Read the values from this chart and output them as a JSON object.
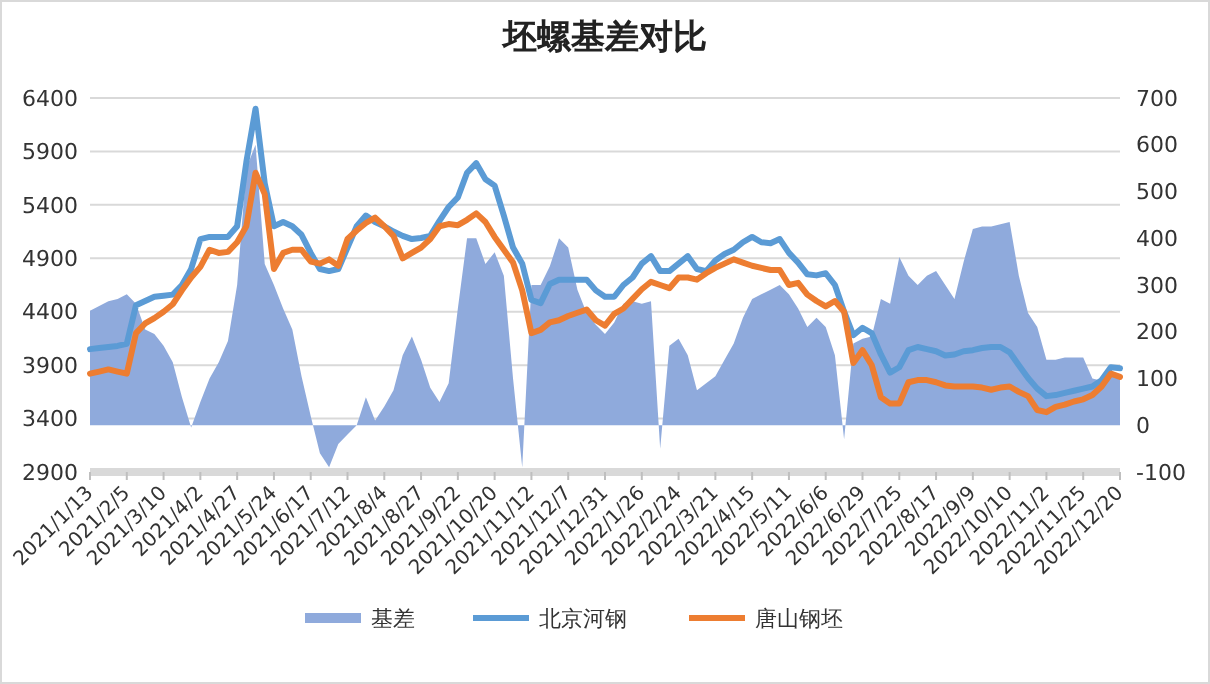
{
  "chart_data": {
    "type": "line",
    "title": "坯螺基差对比",
    "categories": [
      "2021/1/13",
      null,
      null,
      null,
      "2021/2/5",
      null,
      null,
      null,
      "2021/3/10",
      null,
      null,
      null,
      "2021/4/2",
      null,
      null,
      null,
      "2021/4/27",
      null,
      null,
      null,
      "2021/5/24",
      null,
      null,
      null,
      "2021/6/17",
      null,
      null,
      null,
      "2021/7/12",
      null,
      null,
      null,
      "2021/8/4",
      null,
      null,
      null,
      "2021/8/27",
      null,
      null,
      null,
      "2021/9/22",
      null,
      null,
      null,
      "2021/10/20",
      null,
      null,
      null,
      "2021/11/12",
      null,
      null,
      null,
      "2021/12/7",
      null,
      null,
      null,
      "2021/12/31",
      null,
      null,
      null,
      "2022/1/26",
      null,
      null,
      null,
      "2022/2/24",
      null,
      null,
      null,
      "2022/3/21",
      null,
      null,
      null,
      "2022/4/15",
      null,
      null,
      null,
      "2022/5/11",
      null,
      null,
      null,
      "2022/6/6",
      null,
      null,
      null,
      "2022/6/29",
      null,
      null,
      null,
      "2022/7/25",
      null,
      null,
      null,
      "2022/8/17",
      null,
      null,
      null,
      "2022/9/9",
      null,
      null,
      null,
      "2022/10/10",
      null,
      null,
      null,
      "2022/11/2",
      null,
      null,
      null,
      "2022/11/25",
      null,
      null,
      null,
      "2022/12/20"
    ],
    "series": [
      {
        "name": "基差",
        "type": "area",
        "axis": "y2",
        "color": "#8faadc",
        "values": [
          245,
          255,
          265,
          270,
          280,
          260,
          205,
          195,
          170,
          135,
          60,
          -5,
          50,
          100,
          135,
          180,
          300,
          550,
          600,
          345,
          300,
          250,
          205,
          105,
          20,
          -60,
          -90,
          -40,
          -20,
          0,
          60,
          10,
          40,
          75,
          150,
          190,
          140,
          80,
          50,
          90,
          250,
          400,
          400,
          345,
          370,
          320,
          100,
          -90,
          300,
          300,
          340,
          400,
          380,
          290,
          240,
          215,
          195,
          220,
          260,
          265,
          260,
          265,
          -50,
          170,
          185,
          150,
          75,
          90,
          105,
          140,
          175,
          230,
          270,
          280,
          290,
          300,
          280,
          250,
          210,
          230,
          210,
          150,
          -30,
          175,
          185,
          190,
          270,
          260,
          360,
          320,
          300,
          320,
          330,
          300,
          270,
          350,
          420,
          425,
          425,
          430,
          435,
          320,
          240,
          210,
          140,
          140,
          145,
          145,
          145,
          100,
          95,
          120,
          100
        ]
      },
      {
        "name": "北京河钢",
        "color": "#5b9bd5",
        "values": [
          4050,
          4060,
          4070,
          4080,
          4100,
          4460,
          4500,
          4540,
          4550,
          4560,
          4650,
          4800,
          5080,
          5100,
          5100,
          5100,
          5200,
          5800,
          6300,
          5600,
          5200,
          5240,
          5200,
          5120,
          4950,
          4800,
          4780,
          4800,
          5000,
          5200,
          5300,
          5240,
          5200,
          5150,
          5110,
          5080,
          5090,
          5110,
          5250,
          5380,
          5470,
          5700,
          5790,
          5640,
          5580,
          5300,
          5000,
          4850,
          4510,
          4480,
          4660,
          4700,
          4700,
          4700,
          4700,
          4600,
          4540,
          4540,
          4650,
          4720,
          4850,
          4920,
          4780,
          4780,
          4850,
          4920,
          4800,
          4780,
          4880,
          4940,
          4980,
          5050,
          5100,
          5050,
          5040,
          5080,
          4950,
          4860,
          4750,
          4740,
          4760,
          4650,
          4400,
          4180,
          4250,
          4200,
          4000,
          3830,
          3880,
          4040,
          4070,
          4050,
          4030,
          3990,
          4000,
          4030,
          4040,
          4060,
          4070,
          4070,
          4020,
          3900,
          3780,
          3680,
          3610,
          3620,
          3640,
          3660,
          3680,
          3700,
          3760,
          3880,
          3870
        ]
      },
      {
        "name": "唐山钢坯",
        "color": "#ed7d31",
        "values": [
          3820,
          3840,
          3860,
          3840,
          3820,
          4200,
          4290,
          4340,
          4400,
          4470,
          4600,
          4720,
          4820,
          4980,
          4950,
          4960,
          5050,
          5200,
          5700,
          5500,
          4800,
          4950,
          4980,
          4980,
          4870,
          4850,
          4890,
          4830,
          5080,
          5160,
          5230,
          5280,
          5200,
          5110,
          4900,
          4950,
          5000,
          5080,
          5200,
          5220,
          5210,
          5260,
          5320,
          5240,
          5100,
          4980,
          4860,
          4600,
          4200,
          4230,
          4300,
          4320,
          4360,
          4390,
          4420,
          4320,
          4270,
          4380,
          4430,
          4520,
          4610,
          4680,
          4650,
          4620,
          4720,
          4720,
          4700,
          4760,
          4810,
          4850,
          4890,
          4860,
          4830,
          4810,
          4790,
          4790,
          4650,
          4670,
          4560,
          4500,
          4450,
          4500,
          4400,
          3920,
          4040,
          3900,
          3600,
          3540,
          3540,
          3740,
          3760,
          3760,
          3740,
          3710,
          3700,
          3700,
          3700,
          3690,
          3670,
          3690,
          3700,
          3650,
          3610,
          3480,
          3460,
          3510,
          3530,
          3560,
          3580,
          3620,
          3700,
          3820,
          3790
        ]
      }
    ],
    "ylim": [
      2900,
      6400
    ],
    "yticks": [
      2900,
      3400,
      3900,
      4400,
      4900,
      5400,
      5900,
      6400
    ],
    "y2lim": [
      -100,
      700
    ],
    "y2ticks": [
      -100,
      0,
      100,
      200,
      300,
      400,
      500,
      600,
      700
    ],
    "grid": "y",
    "legend": "bottom"
  }
}
